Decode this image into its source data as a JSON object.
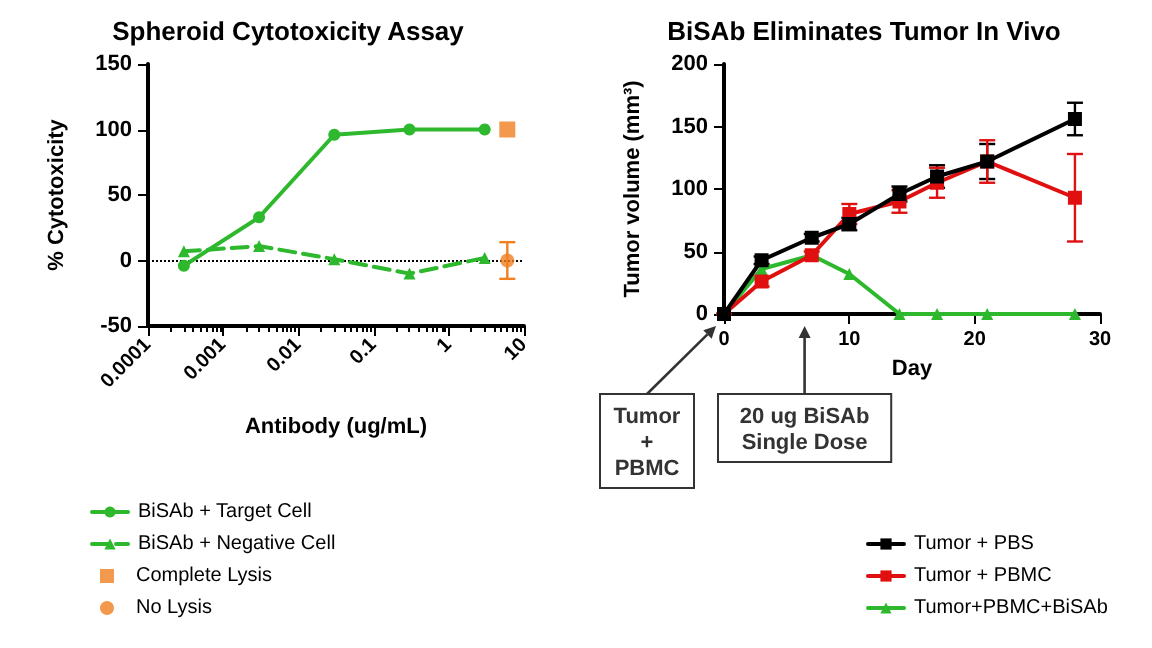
{
  "chart_data": [
    {
      "type": "line",
      "title": "Spheroid Cytotoxicity Assay",
      "xlabel": "Antibody (ug/mL)",
      "ylabel": "% Cytotoxicity",
      "log": "x",
      "xlim": [
        0.0001,
        10
      ],
      "xticks": [
        0.0001,
        0.001,
        0.01,
        0.1,
        1,
        10
      ],
      "ylim": [
        -50,
        150
      ],
      "yticks": [
        -50,
        0,
        50,
        100,
        150
      ],
      "grid": false,
      "legend": "bottom left",
      "ref_lines": [
        {
          "axis": "y",
          "value": 0,
          "color": "#000000",
          "line_style": "dotted"
        }
      ],
      "series": [
        {
          "name": "BiSAb + Target Cell",
          "color": "#2db82d",
          "marker": "circle",
          "line_style": "solid",
          "x": [
            0.0003,
            0.003,
            0.03,
            0.3,
            3
          ],
          "values": [
            -4,
            33,
            96,
            100,
            100
          ]
        },
        {
          "name": "BiSAb + Negative Cell",
          "color": "#2db82d",
          "marker": "triangle",
          "line_style": "dashed",
          "x": [
            0.0003,
            0.003,
            0.03,
            0.3,
            3
          ],
          "values": [
            7,
            11,
            1,
            -10,
            2
          ]
        },
        {
          "name": "Complete Lysis",
          "type": "scatter",
          "color": "#f08020",
          "marker": "square",
          "x": [
            6
          ],
          "values": [
            100
          ]
        },
        {
          "name": "No Lysis",
          "type": "scatter",
          "color": "#f08020",
          "marker": "circle",
          "x": [
            6
          ],
          "values": [
            0
          ],
          "errors": [
            14
          ]
        }
      ]
    },
    {
      "type": "line",
      "title": "BiSAb Eliminates Tumor In Vivo",
      "xlabel": "Day",
      "ylabel": "Tumor volume (mm³)",
      "xlim": [
        0,
        30
      ],
      "xticks": [
        0,
        10,
        20,
        30
      ],
      "ylim": [
        0,
        200
      ],
      "yticks": [
        0,
        50,
        100,
        150,
        200
      ],
      "grid": false,
      "legend": "bottom right",
      "annotations": [
        "Tumor\n+\nPBMC",
        "20 ug BiSAb\nSingle Dose"
      ],
      "x": [
        0,
        3,
        7,
        10,
        14,
        17,
        21,
        28
      ],
      "series": [
        {
          "name": "Tumor + PBS",
          "color": "#000000",
          "marker": "square",
          "line_style": "solid",
          "values": [
            0,
            43,
            61,
            72,
            96,
            110,
            122,
            156
          ],
          "errors": [
            0,
            3,
            3,
            5,
            6,
            9,
            14,
            13
          ]
        },
        {
          "name": "Tumor + PBMC",
          "color": "#e01010",
          "marker": "square",
          "line_style": "solid",
          "values": [
            0,
            26,
            47,
            80,
            90,
            105,
            122,
            93
          ],
          "errors": [
            0,
            4,
            3,
            8,
            9,
            12,
            17,
            35
          ]
        },
        {
          "name": "Tumor+PBMC+BiSAb",
          "color": "#2db82d",
          "marker": "triangle",
          "line_style": "solid",
          "values": [
            0,
            36,
            47,
            32,
            0,
            0,
            0,
            0
          ]
        }
      ]
    }
  ]
}
